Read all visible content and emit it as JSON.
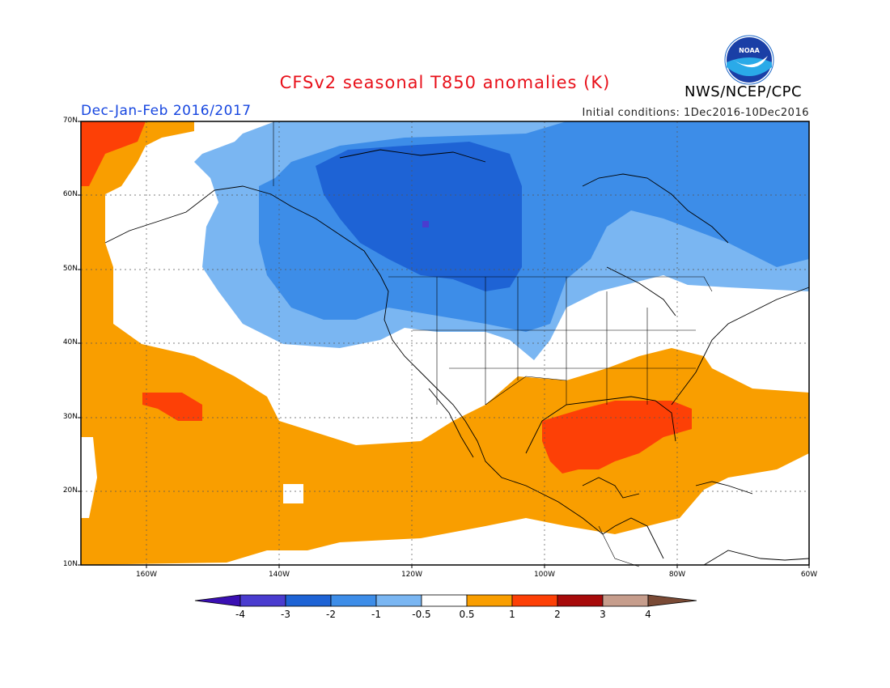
{
  "title": "CFSv2 seasonal T850 anomalies (K)",
  "season": "Dec-Jan-Feb 2016/2017",
  "initial_conditions": "Initial conditions: 1Dec2016-10Dec2016",
  "agency": "NWS/NCEP/CPC",
  "logo_text": "NOAA",
  "map": {
    "lat_labels": [
      "70N",
      "60N",
      "50N",
      "40N",
      "30N",
      "20N",
      "10N"
    ],
    "lon_labels": [
      "160W",
      "140W",
      "120W",
      "100W",
      "80W",
      "60W"
    ],
    "lon_range": [
      -170,
      -60
    ],
    "lat_range": [
      10,
      70
    ]
  },
  "colorbar": {
    "labels": [
      "-4",
      "-3",
      "-2",
      "-1",
      "-0.5",
      "0.5",
      "1",
      "2",
      "3",
      "4"
    ],
    "colors": [
      "#3a0fb3",
      "#4a3ccf",
      "#1e63d5",
      "#3d8de8",
      "#7ab6f2",
      "#ffffff",
      "#f99e00",
      "#fd4006",
      "#a70a0a",
      "#c69d8c",
      "#7a4a35"
    ]
  },
  "colors": {
    "title": "#e8101a",
    "season": "#1646e0"
  }
}
